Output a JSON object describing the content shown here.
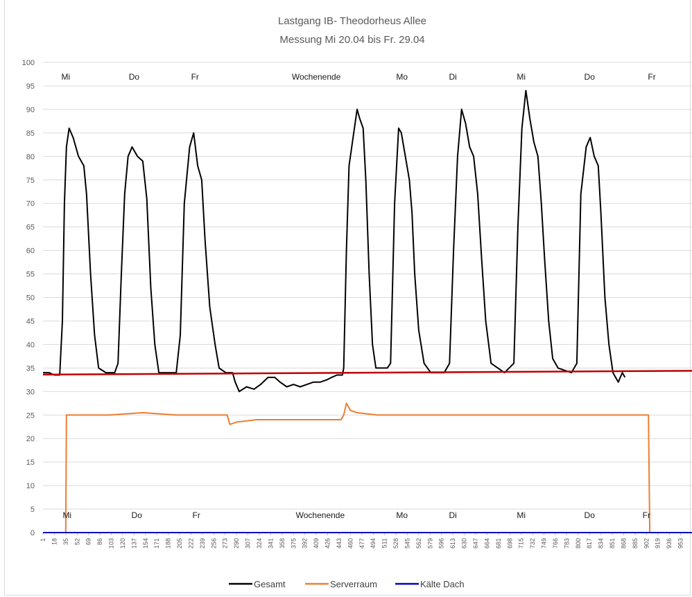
{
  "chart_data": {
    "type": "line",
    "title": "Lastgang  IB- Theodorheus  Allee",
    "subtitle": "Messung Mi 20.04 bis Fr. 29.04",
    "xlabel": "",
    "ylabel": "",
    "ylim": [
      0,
      100
    ],
    "yticks": [
      0,
      5,
      10,
      15,
      20,
      25,
      30,
      35,
      40,
      45,
      50,
      55,
      60,
      65,
      70,
      75,
      80,
      85,
      90,
      95,
      100
    ],
    "xlim": [
      1,
      970
    ],
    "xtick_labels": [
      "1",
      "18",
      "35",
      "52",
      "69",
      "86",
      "103",
      "120",
      "137",
      "154",
      "171",
      "188",
      "205",
      "222",
      "239",
      "256",
      "273",
      "290",
      "307",
      "324",
      "341",
      "358",
      "375",
      "392",
      "409",
      "426",
      "443",
      "460",
      "477",
      "494",
      "511",
      "528",
      "545",
      "562",
      "579",
      "596",
      "613",
      "630",
      "647",
      "664",
      "681",
      "698",
      "715",
      "732",
      "749",
      "766",
      "783",
      "800",
      "817",
      "834",
      "851",
      "868",
      "885",
      "902",
      "919",
      "936",
      "953"
    ],
    "grid": true,
    "legend_position": "bottom",
    "day_labels_top": [
      {
        "text": "Mi",
        "x": 35
      },
      {
        "text": "Do",
        "x": 137
      },
      {
        "text": "Fr",
        "x": 228
      },
      {
        "text": "Wochenende",
        "x": 409
      },
      {
        "text": "Mo",
        "x": 537
      },
      {
        "text": "Di",
        "x": 613
      },
      {
        "text": "Mi",
        "x": 715
      },
      {
        "text": "Do",
        "x": 817
      },
      {
        "text": "Fr",
        "x": 910
      }
    ],
    "day_labels_bottom": [
      {
        "text": "Mi",
        "x": 37
      },
      {
        "text": "Do",
        "x": 141
      },
      {
        "text": "Fr",
        "x": 230
      },
      {
        "text": "Wochenende",
        "x": 415
      },
      {
        "text": "Mo",
        "x": 537
      },
      {
        "text": "Di",
        "x": 613
      },
      {
        "text": "Mi",
        "x": 715
      },
      {
        "text": "Do",
        "x": 817
      },
      {
        "text": "Fr",
        "x": 902
      }
    ],
    "series": [
      {
        "name": "Gesamt",
        "color": "#000000",
        "values": [
          [
            1,
            34
          ],
          [
            10,
            34
          ],
          [
            18,
            33.5
          ],
          [
            26,
            33.5
          ],
          [
            30,
            45
          ],
          [
            33,
            70
          ],
          [
            36,
            82
          ],
          [
            40,
            86
          ],
          [
            46,
            84
          ],
          [
            54,
            80
          ],
          [
            62,
            78
          ],
          [
            66,
            72
          ],
          [
            72,
            55
          ],
          [
            78,
            42
          ],
          [
            84,
            35
          ],
          [
            95,
            34
          ],
          [
            108,
            34
          ],
          [
            113,
            36
          ],
          [
            118,
            55
          ],
          [
            123,
            72
          ],
          [
            128,
            80
          ],
          [
            134,
            82
          ],
          [
            142,
            80
          ],
          [
            150,
            79
          ],
          [
            156,
            71
          ],
          [
            162,
            52
          ],
          [
            168,
            40
          ],
          [
            174,
            34
          ],
          [
            188,
            34
          ],
          [
            200,
            34
          ],
          [
            206,
            42
          ],
          [
            212,
            70
          ],
          [
            220,
            82
          ],
          [
            226,
            85
          ],
          [
            232,
            78
          ],
          [
            238,
            75
          ],
          [
            243,
            62
          ],
          [
            250,
            48
          ],
          [
            258,
            40
          ],
          [
            264,
            35
          ],
          [
            274,
            34
          ],
          [
            284,
            34
          ],
          [
            288,
            32
          ],
          [
            294,
            30
          ],
          [
            305,
            31
          ],
          [
            316,
            30.5
          ],
          [
            326,
            31.5
          ],
          [
            337,
            33
          ],
          [
            347,
            33
          ],
          [
            355,
            32
          ],
          [
            365,
            31
          ],
          [
            375,
            31.5
          ],
          [
            385,
            31
          ],
          [
            395,
            31.5
          ],
          [
            405,
            32
          ],
          [
            415,
            32
          ],
          [
            425,
            32.5
          ],
          [
            432,
            33
          ],
          [
            440,
            33.5
          ],
          [
            448,
            33.5
          ],
          [
            450,
            35
          ],
          [
            454,
            60
          ],
          [
            458,
            78
          ],
          [
            464,
            84
          ],
          [
            470,
            90
          ],
          [
            474,
            88
          ],
          [
            479,
            86
          ],
          [
            483,
            75
          ],
          [
            488,
            55
          ],
          [
            493,
            40
          ],
          [
            498,
            35
          ],
          [
            515,
            35
          ],
          [
            520,
            36
          ],
          [
            526,
            70
          ],
          [
            532,
            86
          ],
          [
            536,
            85
          ],
          [
            542,
            80
          ],
          [
            548,
            75
          ],
          [
            552,
            68
          ],
          [
            556,
            55
          ],
          [
            562,
            43
          ],
          [
            570,
            36
          ],
          [
            580,
            34
          ],
          [
            600,
            34
          ],
          [
            608,
            36
          ],
          [
            614,
            60
          ],
          [
            620,
            80
          ],
          [
            626,
            90
          ],
          [
            632,
            87
          ],
          [
            638,
            82
          ],
          [
            644,
            80
          ],
          [
            650,
            72
          ],
          [
            656,
            58
          ],
          [
            662,
            45
          ],
          [
            670,
            36
          ],
          [
            690,
            34
          ],
          [
            704,
            36
          ],
          [
            710,
            65
          ],
          [
            716,
            86
          ],
          [
            722,
            94
          ],
          [
            728,
            88
          ],
          [
            734,
            83
          ],
          [
            740,
            80
          ],
          [
            745,
            70
          ],
          [
            750,
            58
          ],
          [
            756,
            45
          ],
          [
            762,
            37
          ],
          [
            770,
            35
          ],
          [
            790,
            34
          ],
          [
            798,
            36
          ],
          [
            804,
            72
          ],
          [
            812,
            82
          ],
          [
            818,
            84
          ],
          [
            824,
            80
          ],
          [
            830,
            78
          ],
          [
            834,
            68
          ],
          [
            840,
            50
          ],
          [
            846,
            40
          ],
          [
            852,
            34
          ],
          [
            860,
            32
          ],
          [
            866,
            34
          ],
          [
            870,
            33
          ]
        ]
      },
      {
        "name": "Serverraum",
        "color": "#ed7d31",
        "values": [
          [
            1,
            0
          ],
          [
            35,
            0
          ],
          [
            36,
            25
          ],
          [
            60,
            25
          ],
          [
            100,
            25
          ],
          [
            150,
            25.5
          ],
          [
            200,
            25
          ],
          [
            254,
            25
          ],
          [
            260,
            25
          ],
          [
            276,
            25
          ],
          [
            280,
            23
          ],
          [
            290,
            23.5
          ],
          [
            320,
            24
          ],
          [
            360,
            24
          ],
          [
            400,
            24
          ],
          [
            446,
            24
          ],
          [
            450,
            25
          ],
          [
            454,
            27.5
          ],
          [
            460,
            26
          ],
          [
            470,
            25.5
          ],
          [
            500,
            25
          ],
          [
            550,
            25
          ],
          [
            600,
            25
          ],
          [
            650,
            25
          ],
          [
            700,
            25
          ],
          [
            750,
            25
          ],
          [
            800,
            25
          ],
          [
            850,
            25
          ],
          [
            905,
            25
          ],
          [
            907,
            0
          ],
          [
            970,
            0
          ]
        ]
      },
      {
        "name": "Kälte Dach",
        "color": "#0000c0",
        "values": [
          [
            1,
            0
          ],
          [
            100,
            0
          ],
          [
            200,
            0
          ],
          [
            300,
            0
          ],
          [
            400,
            0
          ],
          [
            500,
            0
          ],
          [
            600,
            0
          ],
          [
            700,
            0
          ],
          [
            800,
            0
          ],
          [
            900,
            0
          ],
          [
            970,
            0
          ]
        ]
      },
      {
        "name": "",
        "color": "#c00000",
        "values": [
          [
            1,
            33.6
          ],
          [
            970,
            34.4
          ]
        ]
      }
    ]
  }
}
